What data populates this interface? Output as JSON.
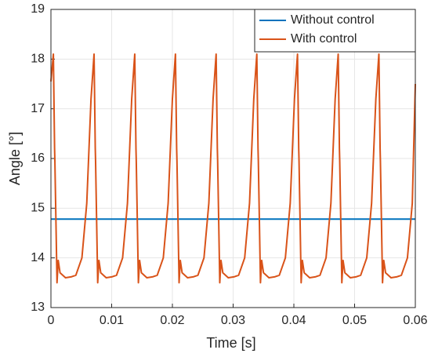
{
  "chart_data": {
    "type": "line",
    "xlabel": "Time [s]",
    "ylabel": "Angle [°]",
    "xlim": [
      0,
      0.06
    ],
    "xticks": [
      0,
      0.01,
      0.02,
      0.03,
      0.04,
      0.05,
      0.06
    ],
    "ylim": [
      13,
      19
    ],
    "yticks": [
      13,
      14,
      15,
      16,
      17,
      18,
      19
    ],
    "grid": true,
    "legend": "northeast",
    "series": [
      {
        "name": "Without control",
        "color": "#0072BD",
        "x": [
          0,
          0.06
        ],
        "values": [
          14.78,
          14.78
        ]
      },
      {
        "name": "With control",
        "color": "#D95319",
        "x": [
          0,
          0.0004,
          0.0006,
          0.00065,
          0.001,
          0.0012,
          0.0015,
          0.0024,
          0.0034,
          0.0041,
          0.0051,
          0.0059,
          0.0066,
          0.0071,
          0.0073,
          0.00735,
          0.0077,
          0.0079,
          0.0082,
          0.0091,
          0.0101,
          0.0108,
          0.0118,
          0.0126,
          0.0133,
          0.0138,
          0.014,
          0.01405,
          0.0144,
          0.0146,
          0.0149,
          0.0158,
          0.0168,
          0.0175,
          0.0185,
          0.0193,
          0.02,
          0.0205,
          0.0207,
          0.02075,
          0.0211,
          0.0213,
          0.0216,
          0.0225,
          0.0235,
          0.0242,
          0.0252,
          0.026,
          0.0267,
          0.0272,
          0.0274,
          0.02745,
          0.0278,
          0.028,
          0.0283,
          0.0292,
          0.0302,
          0.0309,
          0.0319,
          0.0327,
          0.0334,
          0.0339,
          0.0341,
          0.03415,
          0.0345,
          0.0347,
          0.035,
          0.0359,
          0.0369,
          0.0376,
          0.0386,
          0.0394,
          0.0401,
          0.0406,
          0.0408,
          0.04085,
          0.0412,
          0.0414,
          0.0417,
          0.0426,
          0.0436,
          0.0443,
          0.0453,
          0.0461,
          0.0468,
          0.0473,
          0.0475,
          0.04755,
          0.0479,
          0.0481,
          0.0484,
          0.0493,
          0.0503,
          0.051,
          0.052,
          0.0528,
          0.0535,
          0.054,
          0.0542,
          0.05425,
          0.0546,
          0.0548,
          0.0551,
          0.056,
          0.057,
          0.0577,
          0.0587,
          0.0595,
          0.06
        ],
        "values": [
          17.55,
          18.1,
          16.2,
          15.95,
          13.5,
          13.95,
          13.7,
          13.6,
          13.62,
          13.65,
          14.0,
          15.1,
          17.2,
          18.1,
          16.2,
          15.95,
          13.5,
          13.95,
          13.7,
          13.6,
          13.62,
          13.65,
          14.0,
          15.1,
          17.2,
          18.1,
          16.2,
          15.95,
          13.5,
          13.95,
          13.7,
          13.6,
          13.62,
          13.65,
          14.0,
          15.1,
          17.2,
          18.1,
          16.2,
          15.95,
          13.5,
          13.95,
          13.7,
          13.6,
          13.62,
          13.65,
          14.0,
          15.1,
          17.2,
          18.1,
          16.2,
          15.95,
          13.5,
          13.95,
          13.7,
          13.6,
          13.62,
          13.65,
          14.0,
          15.1,
          17.2,
          18.1,
          16.2,
          15.95,
          13.5,
          13.95,
          13.7,
          13.6,
          13.62,
          13.65,
          14.0,
          15.1,
          17.2,
          18.1,
          16.2,
          15.95,
          13.5,
          13.95,
          13.7,
          13.6,
          13.62,
          13.65,
          14.0,
          15.1,
          17.2,
          18.1,
          16.2,
          15.95,
          13.5,
          13.95,
          13.7,
          13.6,
          13.62,
          13.65,
          14.0,
          15.1,
          17.2,
          18.1,
          16.2,
          15.95,
          13.5,
          13.95,
          13.7,
          13.6,
          13.62,
          13.65,
          14.0,
          15.1,
          17.5
        ]
      }
    ]
  }
}
